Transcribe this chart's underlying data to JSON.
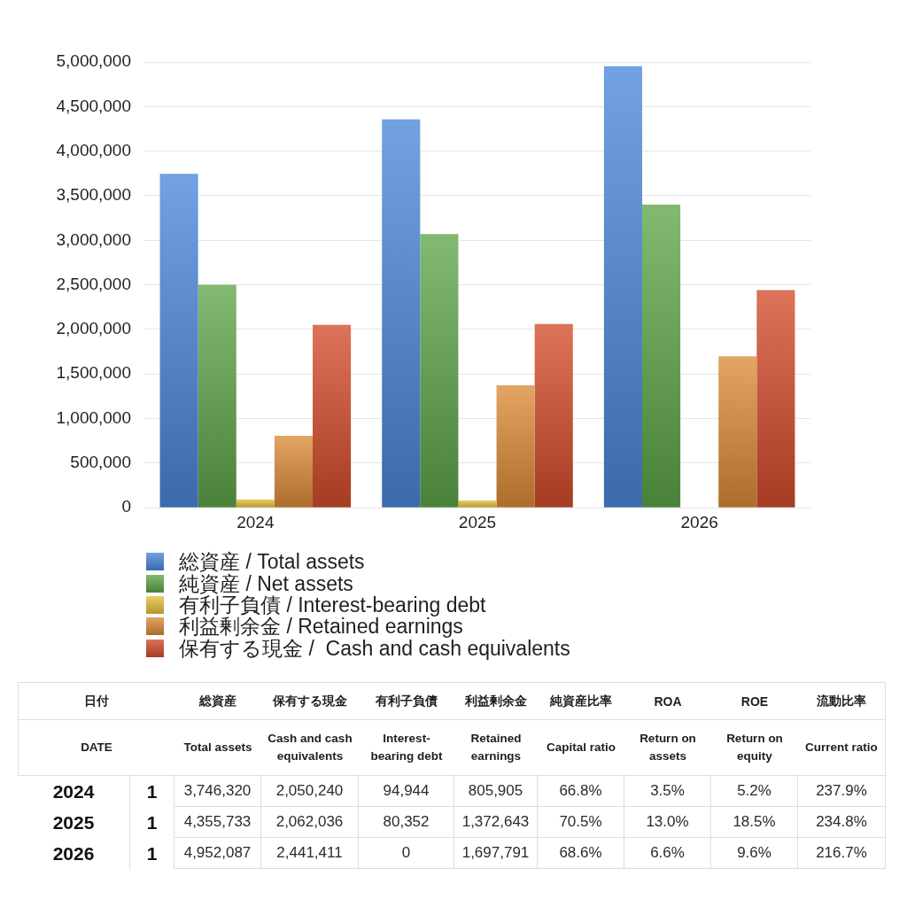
{
  "chart_data": [
    {
      "type": "bar",
      "categories": [
        "2024",
        "2025",
        "2026"
      ],
      "series": [
        {
          "name": "総資産 / Total assets",
          "color": "#4a86dc",
          "values": [
            3746320,
            4355733,
            4952087
          ]
        },
        {
          "name": "純資産 / Net assets",
          "color": "#5da648",
          "values": [
            2500000,
            3070000,
            3400000
          ]
        },
        {
          "name": "有利子負債 / Interest-bearing debt",
          "color": "#e4c23e",
          "values": [
            94944,
            80352,
            0
          ]
        },
        {
          "name": "利益剰余金 / Retained earnings",
          "color": "#dc8a38",
          "values": [
            805905,
            1372643,
            1697791
          ]
        },
        {
          "name": "保有する現金 /  Cash and cash equivalents",
          "color": "#d44c2a",
          "values": [
            2050240,
            2062036,
            2441411
          ]
        }
      ],
      "ylim": [
        0,
        5000000
      ],
      "yticks": [
        0,
        {
          "value": 500000,
          "label": "500,000"
        },
        {
          "value": 1000000,
          "label": "1,000,000"
        },
        {
          "value": 1500000,
          "label": "1,500,000"
        },
        {
          "value": 2000000,
          "label": "2,000,000"
        },
        {
          "value": 2500000,
          "label": "2,500,000"
        },
        {
          "value": 3000000,
          "label": "3,000,000"
        },
        {
          "value": 3500000,
          "label": "3,500,000"
        },
        {
          "value": 4000000,
          "label": "4,000,000"
        },
        {
          "value": 4500000,
          "label": "4,500,000"
        },
        {
          "value": 5000000,
          "label": "5,000,000"
        }
      ],
      "grid": "y",
      "legend": "bottom"
    },
    {
      "type": "other",
      "xlabel": "日付\nDATE",
      "categories": [
        "2024",
        "2025",
        "2026"
      ],
      "series": [
        {
          "values": [
            1,
            1,
            1
          ],
          "value_labels": [
            "1",
            "1",
            "1"
          ]
        },
        {
          "name": "総資産\nTotal assets",
          "values": [
            3746320,
            4355733,
            4952087
          ],
          "value_labels": [
            "3,746,320",
            "4,355,733",
            "4,952,087"
          ]
        },
        {
          "name": "保有する現金\nCash and cash equivalents",
          "values": [
            2050240,
            2062036,
            2441411
          ],
          "value_labels": [
            "2,050,240",
            "2,062,036",
            "2,441,411"
          ]
        },
        {
          "name": "有利子負債\nInterest-bearing debt",
          "values": [
            94944,
            80352,
            0
          ],
          "value_labels": [
            "94,944",
            "80,352",
            "0"
          ]
        },
        {
          "name": "利益剰余金\nRetained earnings",
          "values": [
            805905,
            1372643,
            1697791
          ],
          "value_labels": [
            "805,905",
            "1,372,643",
            "1,697,791"
          ]
        },
        {
          "name": "純資産比率\nCapital ratio",
          "values": [
            66.8,
            70.5,
            68.6
          ],
          "value_labels": [
            "66.8%",
            "70.5%",
            "68.6%"
          ]
        },
        {
          "name": "ROA\nReturn on assets",
          "values": [
            3.5,
            13.0,
            6.6
          ],
          "value_labels": [
            "3.5%",
            "13.0%",
            "6.6%"
          ]
        },
        {
          "name": "ROE\nReturn on equity",
          "values": [
            5.2,
            18.5,
            9.6
          ],
          "value_labels": [
            "5.2%",
            "18.5%",
            "9.6%"
          ]
        },
        {
          "name": "流動比率\nCurrent ratio",
          "values": [
            237.9,
            234.8,
            216.7
          ],
          "value_labels": [
            "237.9%",
            "234.8%",
            "216.7%"
          ]
        }
      ]
    }
  ]
}
